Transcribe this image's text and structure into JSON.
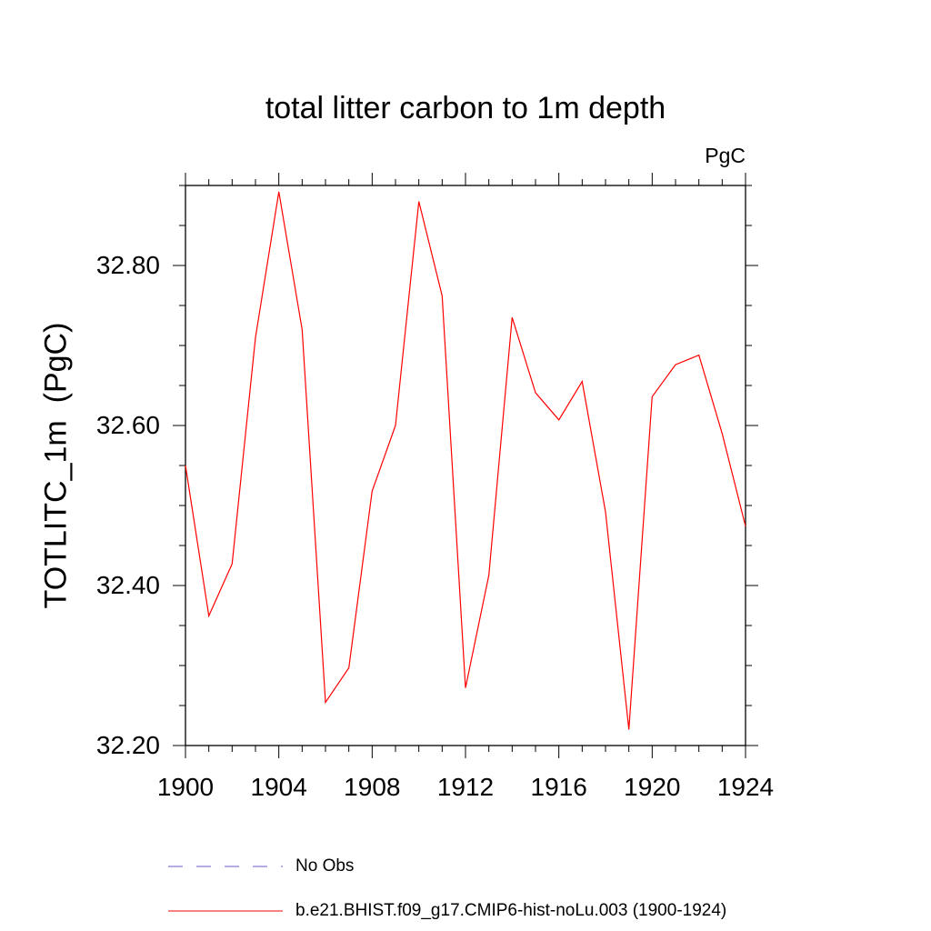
{
  "chart_data": {
    "type": "line",
    "title": "total litter carbon to 1m depth",
    "units_label": "PgC",
    "ylabel": "TOTLITC_1m  (PgC)",
    "xlabel": "",
    "xlim": [
      1900,
      1924
    ],
    "ylim": [
      32.2,
      32.9
    ],
    "x_ticks": [
      "1900",
      "1904",
      "1908",
      "1912",
      "1916",
      "1920",
      "1924"
    ],
    "y_ticks": [
      "32.20",
      "32.40",
      "32.60",
      "32.80"
    ],
    "grid": false,
    "legend_position": "bottom",
    "series": [
      {
        "name": "b.e21.BHIST.f09_g17.CMIP6-hist-noLu.003 (1900-1924)",
        "color": "#ff0000",
        "style": "solid",
        "x": [
          1900,
          1901,
          1902,
          1903,
          1904,
          1905,
          1906,
          1907,
          1908,
          1909,
          1910,
          1911,
          1912,
          1913,
          1914,
          1915,
          1916,
          1917,
          1918,
          1919,
          1920,
          1921,
          1922,
          1923,
          1924
        ],
        "values": [
          32.55,
          32.362,
          32.427,
          32.71,
          32.892,
          32.72,
          32.254,
          32.297,
          32.518,
          32.6,
          32.88,
          32.762,
          32.272,
          32.413,
          32.735,
          32.641,
          32.607,
          32.655,
          32.492,
          32.22,
          32.636,
          32.676,
          32.688,
          32.59,
          32.474
        ]
      }
    ],
    "legend": [
      {
        "label": "No Obs",
        "color": "#6a5acd",
        "style": "dashed"
      },
      {
        "label": "b.e21.BHIST.f09_g17.CMIP6-hist-noLu.003 (1900-1924)",
        "color": "#ff0000",
        "style": "solid"
      }
    ]
  }
}
